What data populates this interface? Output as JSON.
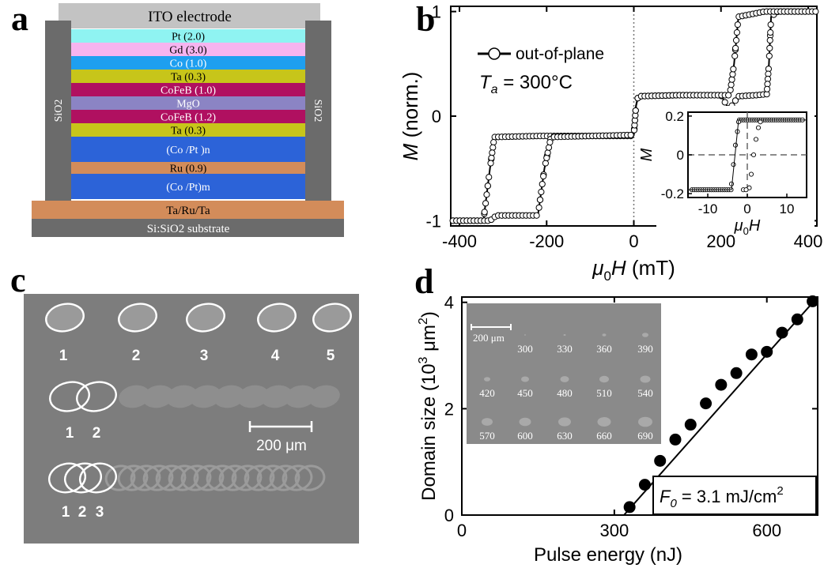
{
  "panels": {
    "a": {
      "label": "a",
      "top_electrode": "ITO electrode",
      "side_left": "SiO2",
      "side_right": "SiO2",
      "layers": [
        {
          "name": "Pt (2.0)",
          "color": "#8ff3f2"
        },
        {
          "name": "Gd (3.0)",
          "color": "#f6b4ef"
        },
        {
          "name": "Co (1.0)",
          "color": "#1e9ff0"
        },
        {
          "name": "Ta (0.3)",
          "color": "#c7c51a"
        },
        {
          "name": "CoFeB (1.0)",
          "color": "#b01060"
        },
        {
          "name": "MgO",
          "color": "#8b84c4"
        },
        {
          "name": "CoFeB (1.2)",
          "color": "#b01060"
        },
        {
          "name": "Ta (0.3)",
          "color": "#c7c51a"
        },
        {
          "name": "(Co /Pt )n",
          "color": "#2c63d8"
        },
        {
          "name": "Ru (0.9)",
          "color": "#d38c5a"
        },
        {
          "name": "(Co /Pt)m",
          "color": "#2c63d8"
        }
      ],
      "buffer": {
        "name": "Ta/Ru/Ta",
        "color": "#d38c5a"
      },
      "substrate": {
        "name": "Si:SiO2 substrate",
        "color": "#6b6b6b"
      }
    },
    "b": {
      "label": "b",
      "legend": "out-of-plane",
      "annotation_var": "T",
      "annotation_sub": "a",
      "annotation_val": " = 300°C",
      "ylabel_var": "M",
      "ylabel_rest": " (norm.)",
      "xlabel_pre": "μ",
      "xlabel_sub": "0",
      "xlabel_var": "H",
      "xlabel_rest": " (mT)",
      "inset": {
        "ylabel": "M",
        "xlabel_pre": "μ",
        "xlabel_sub": "0",
        "xlabel_var": "H"
      }
    },
    "c": {
      "label": "c",
      "row1_labels": [
        "1",
        "2",
        "3",
        "4",
        "5"
      ],
      "row2_labels": [
        "1",
        "2"
      ],
      "row3_labels": [
        "1",
        "2",
        "3"
      ],
      "scalebar": "200 μm"
    },
    "d": {
      "label": "d",
      "ylabel_pre": "Domain size (10",
      "ylabel_sup1": "3",
      "ylabel_mid": " μm",
      "ylabel_sup2": "2",
      "ylabel_post": ")",
      "xlabel": "Pulse energy (nJ)",
      "fit_var": "F",
      "fit_sub": "0",
      "fit_val": " = 3.1 mJ/cm",
      "fit_sup": "2",
      "inset_scalebar": "200 μm",
      "inset_labels": [
        "300",
        "330",
        "360",
        "390",
        "420",
        "450",
        "480",
        "510",
        "540",
        "570",
        "600",
        "630",
        "660",
        "690"
      ]
    }
  },
  "chart_data": [
    {
      "type": "scatter",
      "panel": "b",
      "xlim": [
        -420,
        420
      ],
      "ylim": [
        -1.05,
        1.05
      ],
      "xticks": [
        -400,
        -200,
        0,
        200,
        400
      ],
      "yticks": [
        -1,
        0,
        1
      ],
      "grid": false,
      "legend_position": "top-left",
      "series": [
        {
          "name": "out-of-plane",
          "description_points": "descending branch",
          "x": [
            400,
            330,
            315,
            310,
            305,
            280,
            240,
            225,
            220,
            200,
            100,
            10,
            5,
            0,
            -5,
            -100,
            -220,
            -320,
            -330,
            -345,
            -420
          ],
          "y": [
            1.0,
            1.0,
            0.95,
            0.5,
            0.21,
            0.2,
            0.19,
            0.1,
            0.05,
            0.2,
            0.2,
            0.19,
            0.1,
            -0.18,
            -0.19,
            -0.19,
            -0.19,
            -0.2,
            -0.5,
            -1.0,
            -1.0
          ]
        },
        {
          "x": [
            -420,
            -330,
            -315,
            -220,
            -205,
            -190,
            -100,
            0,
            5,
            10,
            100,
            220,
            230,
            240,
            300,
            315,
            330,
            420
          ],
          "y": [
            -1.0,
            -1.0,
            -0.95,
            -0.95,
            -0.5,
            -0.2,
            -0.19,
            -0.18,
            0.1,
            0.19,
            0.2,
            0.2,
            0.5,
            0.95,
            1.0,
            1.0,
            1.0,
            1.0
          ]
        }
      ],
      "inset": {
        "xlim": [
          -15,
          15
        ],
        "ylim": [
          -0.22,
          0.22
        ],
        "xticks": [
          -10,
          0,
          10
        ],
        "yticks": [
          -0.2,
          0,
          0.2
        ],
        "x": [
          -15,
          -5,
          -3,
          -2,
          0,
          2,
          3,
          5,
          15
        ],
        "y": [
          -0.18,
          -0.18,
          -0.15,
          0.0,
          0.1,
          0.18,
          0.18,
          0.18,
          0.18
        ]
      }
    },
    {
      "type": "scatter",
      "panel": "d",
      "xlim": [
        0,
        700
      ],
      "ylim": [
        0,
        4.1
      ],
      "xticks": [
        0,
        300,
        600
      ],
      "yticks": [
        0,
        2,
        4
      ],
      "grid": false,
      "series": [
        {
          "x": [
            330,
            360,
            390,
            420,
            450,
            480,
            510,
            540,
            570,
            600,
            630,
            660,
            690
          ],
          "y": [
            0.15,
            0.57,
            1.02,
            1.42,
            1.7,
            2.1,
            2.45,
            2.67,
            3.02,
            3.07,
            3.43,
            3.68,
            4.02
          ]
        }
      ],
      "fit_line": {
        "x": [
          305,
          700
        ],
        "y": [
          -0.15,
          4.1
        ]
      }
    }
  ]
}
